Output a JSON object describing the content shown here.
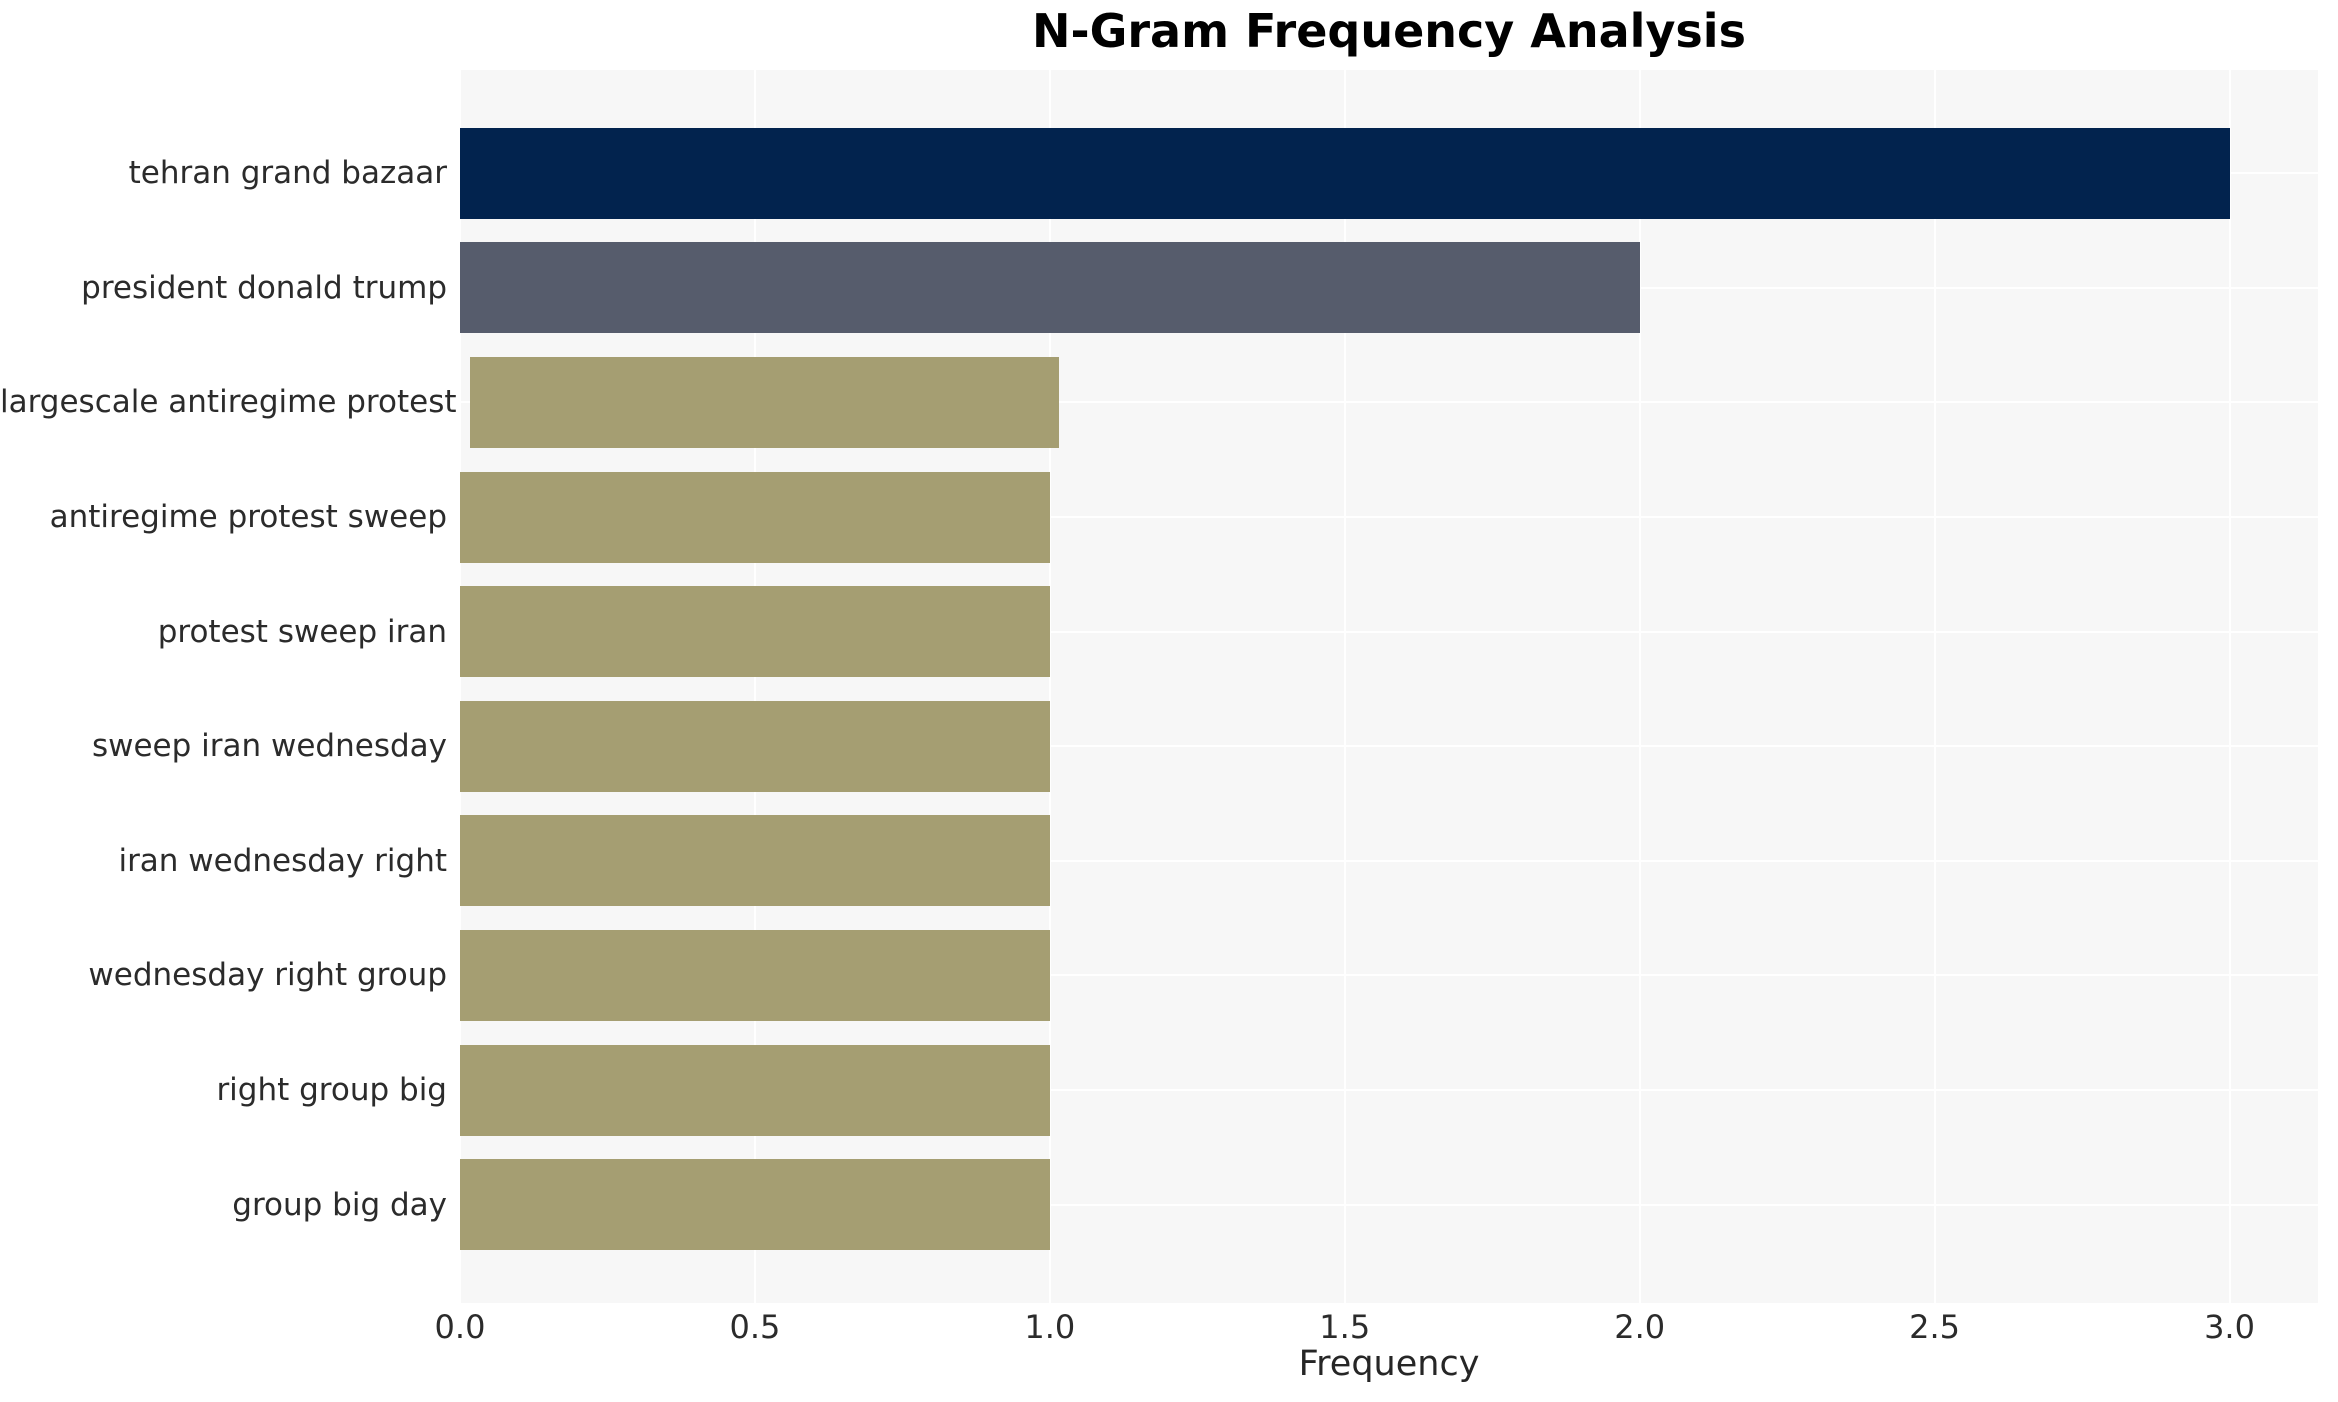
{
  "page": {
    "background": "#ffffff"
  },
  "chart_data": {
    "type": "bar",
    "orientation": "horizontal",
    "title": "N-Gram Frequency Analysis",
    "xlabel": "Frequency",
    "ylabel": "",
    "categories": [
      "tehran grand bazaar",
      "president donald trump",
      "largescale antiregime protest",
      "antiregime protest sweep",
      "protest sweep iran",
      "sweep iran wednesday",
      "iran wednesday right",
      "wednesday right group",
      "right group big",
      "group big day"
    ],
    "values": [
      3,
      2,
      1,
      1,
      1,
      1,
      1,
      1,
      1,
      1
    ],
    "bar_colors": [
      "#02234e",
      "#565c6c",
      "#a59e72",
      "#a59e72",
      "#a59e72",
      "#a59e72",
      "#a59e72",
      "#a59e72",
      "#a59e72",
      "#a59e72"
    ],
    "x_ticks": [
      {
        "value": 0,
        "label": "0.0"
      },
      {
        "value": 0.5,
        "label": "0.5"
      },
      {
        "value": 1,
        "label": "1.0"
      },
      {
        "value": 1.5,
        "label": "1.5"
      },
      {
        "value": 2,
        "label": "2.0"
      },
      {
        "value": 2.5,
        "label": "2.5"
      },
      {
        "value": 3,
        "label": "3.0"
      }
    ],
    "xlim": [
      0,
      3.15
    ],
    "grid": true,
    "legend": false,
    "panel_background": "#f7f7f7",
    "gridline_color": "#ffffff",
    "text_color": "#2b2b2b"
  }
}
